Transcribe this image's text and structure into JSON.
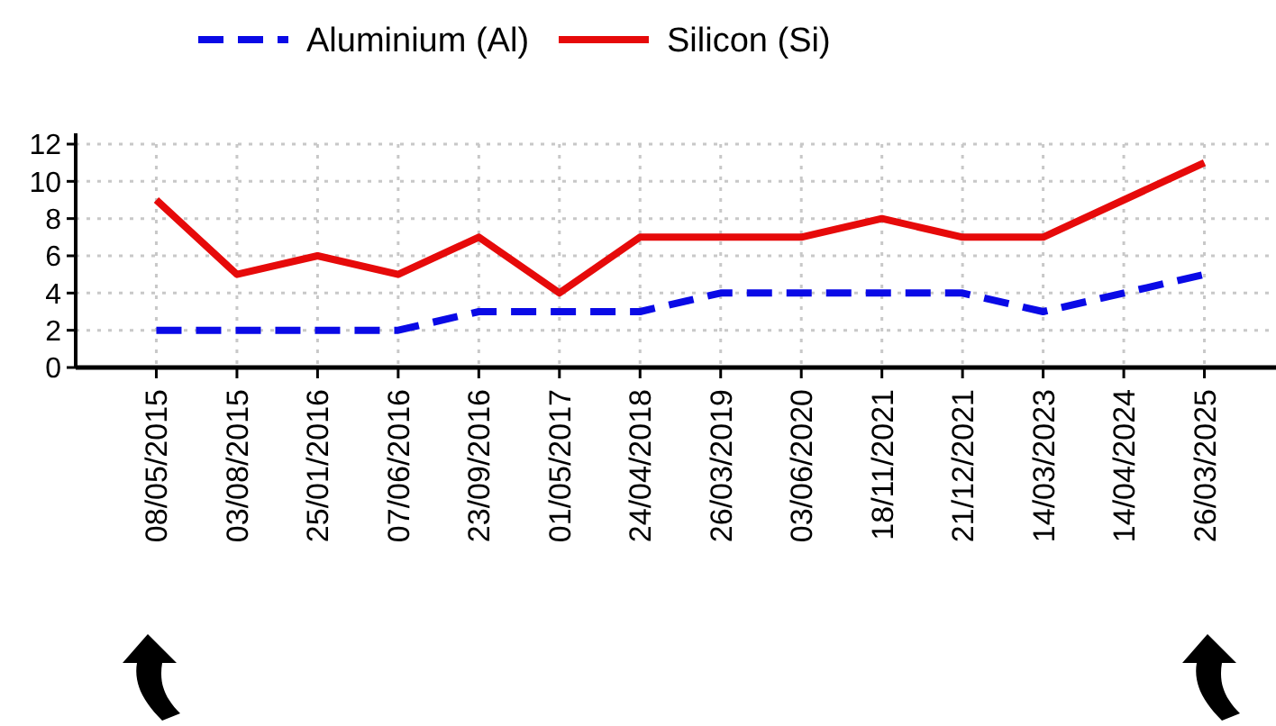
{
  "chart_data": {
    "type": "line",
    "categories": [
      "08/05/2015",
      "03/08/2015",
      "25/01/2016",
      "07/06/2016",
      "23/09/2016",
      "01/05/2017",
      "24/04/2018",
      "26/03/2019",
      "03/06/2020",
      "18/11/2021",
      "21/12/2021",
      "14/03/2023",
      "14/04/2024",
      "26/03/2025"
    ],
    "series": [
      {
        "name": "Aluminium (Al)",
        "color": "#0a0ae6",
        "line_style": "dashed",
        "values": [
          2,
          2,
          2,
          2,
          3,
          3,
          3,
          4,
          4,
          4,
          4,
          3,
          4,
          5
        ]
      },
      {
        "name": "Silicon (Si)",
        "color": "#e60a0a",
        "line_style": "solid",
        "values": [
          9,
          5,
          6,
          5,
          7,
          4,
          7,
          7,
          7,
          8,
          7,
          7,
          9,
          11
        ]
      }
    ],
    "ylim": [
      0,
      12
    ],
    "yticks": [
      0,
      2,
      4,
      6,
      8,
      10,
      12
    ],
    "grid": true,
    "legend": "top",
    "marker": "none"
  }
}
